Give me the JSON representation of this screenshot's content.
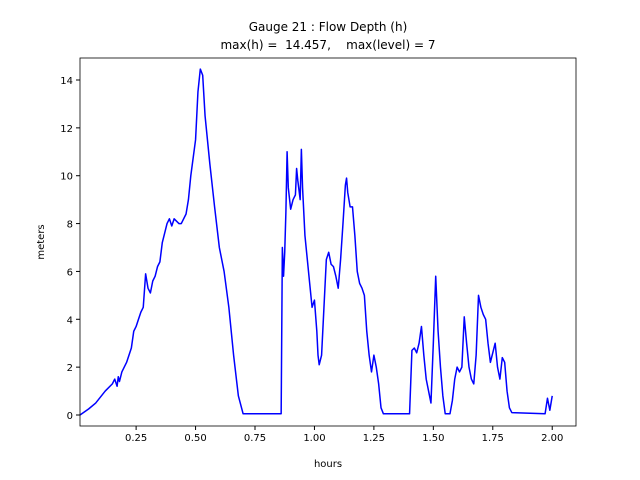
{
  "chart_data": {
    "type": "line",
    "title": "Gauge 21 : Flow Depth (h)",
    "subtitle": "max(h) =  14.457,    max(level) = 7",
    "x_label": "hours",
    "y_label": "meters",
    "xlim": [
      0.014,
      2.1
    ],
    "ylim": [
      -0.46,
      14.92
    ],
    "xticks": [
      0.25,
      {
        "value": 0.5,
        "label": "0.50"
      },
      0.75,
      {
        "value": 1,
        "label": "1.00"
      },
      1.25,
      {
        "value": 1.5,
        "label": "1.50"
      },
      1.75,
      {
        "value": 2,
        "label": "2.00"
      }
    ],
    "yticks": [
      0,
      2,
      4,
      6,
      8,
      10,
      12,
      14
    ],
    "series": [
      {
        "color": "#0000ff",
        "x": [
          0.014,
          0.05,
          0.08,
          0.12,
          0.15,
          0.16,
          0.17,
          0.175,
          0.18,
          0.19,
          0.21,
          0.23,
          0.24,
          0.25,
          0.26,
          0.27,
          0.28,
          0.29,
          0.3,
          0.31,
          0.32,
          0.33,
          0.34,
          0.35,
          0.36,
          0.37,
          0.38,
          0.39,
          0.4,
          0.41,
          0.43,
          0.44,
          0.46,
          0.47,
          0.48,
          0.5,
          0.51,
          0.52,
          0.53,
          0.54,
          0.56,
          0.58,
          0.6,
          0.62,
          0.64,
          0.66,
          0.68,
          0.7,
          0.86,
          0.865,
          0.87,
          0.875,
          0.88,
          0.885,
          0.89,
          0.9,
          0.91,
          0.92,
          0.925,
          0.93,
          0.94,
          0.945,
          0.95,
          0.96,
          0.97,
          0.98,
          0.99,
          1.0,
          1.01,
          1.015,
          1.02,
          1.03,
          1.04,
          1.05,
          1.06,
          1.07,
          1.08,
          1.09,
          1.1,
          1.11,
          1.12,
          1.13,
          1.135,
          1.14,
          1.15,
          1.16,
          1.17,
          1.18,
          1.19,
          1.2,
          1.21,
          1.22,
          1.23,
          1.24,
          1.25,
          1.26,
          1.27,
          1.28,
          1.29,
          1.4,
          1.41,
          1.42,
          1.43,
          1.44,
          1.45,
          1.46,
          1.47,
          1.48,
          1.49,
          1.5,
          1.51,
          1.52,
          1.53,
          1.54,
          1.55,
          1.57,
          1.58,
          1.59,
          1.6,
          1.61,
          1.62,
          1.63,
          1.64,
          1.65,
          1.66,
          1.67,
          1.68,
          1.69,
          1.7,
          1.71,
          1.72,
          1.73,
          1.74,
          1.75,
          1.76,
          1.77,
          1.78,
          1.79,
          1.8,
          1.81,
          1.82,
          1.83,
          1.97,
          1.98,
          1.99,
          2.0
        ],
        "values": [
          0,
          0.25,
          0.5,
          1.0,
          1.3,
          1.5,
          1.2,
          1.6,
          1.4,
          1.8,
          2.2,
          2.8,
          3.5,
          3.7,
          4.0,
          4.3,
          4.5,
          5.9,
          5.3,
          5.1,
          5.6,
          5.8,
          6.2,
          6.4,
          7.2,
          7.6,
          8.0,
          8.2,
          7.9,
          8.2,
          8.0,
          8.0,
          8.4,
          9.0,
          10.0,
          11.5,
          13.5,
          14.457,
          14.2,
          12.5,
          10.5,
          8.7,
          7.0,
          6.0,
          4.5,
          2.5,
          0.8,
          0.05,
          0.05,
          7.0,
          5.8,
          6.8,
          8.5,
          11.0,
          9.5,
          8.6,
          9.0,
          9.2,
          10.3,
          9.8,
          9.0,
          11.1,
          9.5,
          7.5,
          6.5,
          5.5,
          4.5,
          4.8,
          3.5,
          2.5,
          2.1,
          2.5,
          4.5,
          6.5,
          6.8,
          6.3,
          6.2,
          5.8,
          5.3,
          6.5,
          8.0,
          9.6,
          9.9,
          9.3,
          8.7,
          8.7,
          7.5,
          6.0,
          5.5,
          5.3,
          5.0,
          3.5,
          2.5,
          1.8,
          2.5,
          2.0,
          1.3,
          0.3,
          0.05,
          0.05,
          2.7,
          2.8,
          2.6,
          3.0,
          3.7,
          2.5,
          1.5,
          1.0,
          0.5,
          3.0,
          5.8,
          3.5,
          2.0,
          0.8,
          0.05,
          0.05,
          0.6,
          1.5,
          2.0,
          1.8,
          2.0,
          4.1,
          3.0,
          2.0,
          1.5,
          1.3,
          2.5,
          5.0,
          4.5,
          4.2,
          4.0,
          3.0,
          2.2,
          2.6,
          3.0,
          2.0,
          1.5,
          2.4,
          2.2,
          1.0,
          0.3,
          0.1,
          0.05,
          0.7,
          0.2,
          0.8
        ]
      }
    ]
  }
}
